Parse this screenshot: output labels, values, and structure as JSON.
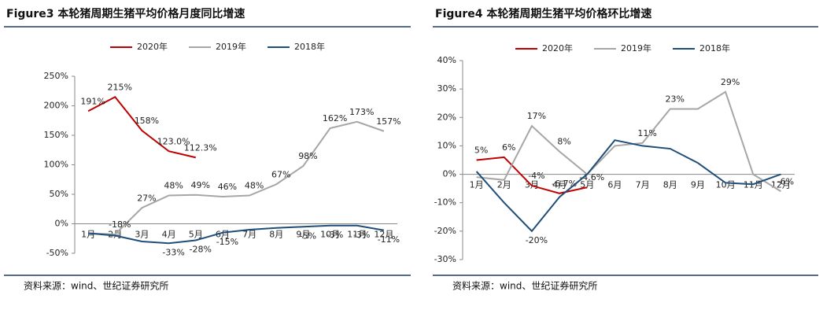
{
  "chart_data": [
    {
      "type": "line",
      "title": "Figure3 本轮猪周期生猪平均价格月度同比增速",
      "note": "资料来源：wind、世纪证券研究所",
      "categories": [
        "1月",
        "2月",
        "3月",
        "4月",
        "5月",
        "6月",
        "7月",
        "8月",
        "9月",
        "10月",
        "11月",
        "12月"
      ],
      "ylim": [
        -50,
        250
      ],
      "yticks": [
        {
          "value": -50,
          "label": "-50%"
        },
        {
          "value": 0,
          "label": "0%"
        },
        {
          "value": 50,
          "label": "50%"
        },
        {
          "value": 100,
          "label": "100%"
        },
        {
          "value": 150,
          "label": "150%"
        },
        {
          "value": 200,
          "label": "200%"
        },
        {
          "value": 250,
          "label": "250%"
        }
      ],
      "series": [
        {
          "name": "2020年",
          "color": "#c00000",
          "values": [
            191,
            215,
            158,
            123.0,
            112.3,
            null,
            null,
            null,
            null,
            null,
            null,
            null
          ],
          "value_labels": [
            "191%",
            "215%",
            "158%",
            "123.0%",
            "112.3%",
            null,
            null,
            null,
            null,
            null,
            null,
            null
          ]
        },
        {
          "name": "2019年",
          "color": "#a6a6a6",
          "values": [
            -16,
            -18,
            27,
            48,
            49,
            46,
            48,
            67,
            98,
            162,
            173,
            157
          ],
          "value_labels": [
            null,
            "-18%",
            "27%",
            "48%",
            "49%",
            "46%",
            "48%",
            "67%",
            "98%",
            "162%",
            "173%",
            "157%"
          ]
        },
        {
          "name": "2018年",
          "color": "#1f4e79",
          "values": [
            -16,
            -20,
            -30,
            -33,
            -28,
            -15,
            -10,
            -7,
            -5,
            -3,
            -3,
            -11
          ],
          "value_labels": [
            null,
            null,
            null,
            "-33%",
            "-28%",
            "-15%",
            null,
            null,
            "-5%",
            "-3%",
            "-3%",
            "-11%"
          ]
        }
      ]
    },
    {
      "type": "line",
      "title": "Figure4 本轮猪周期生猪平均价格环比增速",
      "note": "资料来源：wind、世纪证券研究所",
      "categories": [
        "1月",
        "2月",
        "3月",
        "4月",
        "5月",
        "6月",
        "7月",
        "8月",
        "9月",
        "10月",
        "11月",
        "12月"
      ],
      "ylim": [
        -30,
        40
      ],
      "yticks": [
        {
          "value": -30,
          "label": "-30%"
        },
        {
          "value": -20,
          "label": "-20%"
        },
        {
          "value": -10,
          "label": "-10%"
        },
        {
          "value": 0,
          "label": "0%"
        },
        {
          "value": 10,
          "label": "10%"
        },
        {
          "value": 20,
          "label": "20%"
        },
        {
          "value": 30,
          "label": "30%"
        },
        {
          "value": 40,
          "label": "40%"
        }
      ],
      "series": [
        {
          "name": "2020年",
          "color": "#c00000",
          "values": [
            5,
            6,
            -4,
            -6.7,
            -4.6,
            null,
            null,
            null,
            null,
            null,
            null,
            null
          ],
          "value_labels": [
            "5%",
            "6%",
            "-4%",
            "-6.7%",
            "-4.6%",
            null,
            null,
            null,
            null,
            null,
            null,
            null
          ]
        },
        {
          "name": "2019年",
          "color": "#a6a6a6",
          "values": [
            -1,
            -2,
            17,
            8,
            0,
            10,
            11,
            23,
            23,
            29,
            0,
            -6
          ],
          "value_labels": [
            null,
            null,
            "17%",
            "8%",
            null,
            null,
            "11%",
            "23%",
            null,
            "29%",
            null,
            "-6%"
          ]
        },
        {
          "name": "2018年",
          "color": "#1f4e79",
          "values": [
            1,
            -10,
            -20,
            -8,
            0,
            12,
            10,
            9,
            4,
            -3,
            -3.5,
            0
          ],
          "value_labels": [
            null,
            null,
            "-20%",
            null,
            null,
            null,
            null,
            null,
            null,
            null,
            null,
            null
          ]
        }
      ]
    }
  ]
}
